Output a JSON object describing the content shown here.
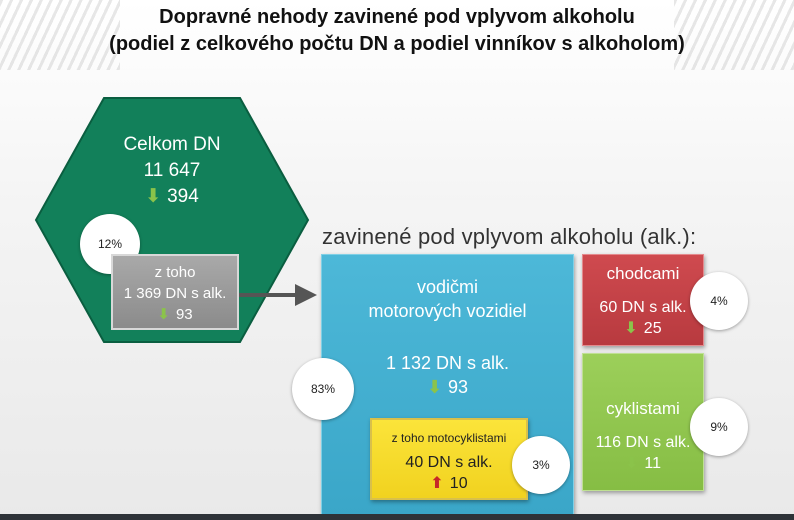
{
  "title": {
    "line1": "Dopravné nehody zavinené pod vplyvom alkoholu",
    "line2": "(podiel z celkového počtu DN a podiel vinníkov s alkoholom)"
  },
  "total": {
    "label": "Celkom DN",
    "value": "11 647",
    "change": "394",
    "change_direction": "down"
  },
  "alcohol_subset": {
    "label": "z toho",
    "value": "1 369 DN s alk.",
    "change": "93",
    "change_direction": "down",
    "share": "12%"
  },
  "subtitle": "zavinené pod vplyvom alkoholu (alk.):",
  "drivers": {
    "label_line1": "vodičmi",
    "label_line2": "motorových vozidiel",
    "value": "1 132 DN s alk.",
    "change": "93",
    "change_direction": "down",
    "share": "83%"
  },
  "motorcyclists": {
    "label": "z toho motocyklistami",
    "value": "40 DN s alk.",
    "change": "10",
    "change_direction": "up",
    "share": "3%"
  },
  "pedestrians": {
    "label": "chodcami",
    "value": "60 DN s alk.",
    "change": "25",
    "change_direction": "down",
    "share": "4%"
  },
  "cyclists": {
    "label": "cyklistami",
    "value": "116 DN s alk.",
    "change": "11",
    "change_direction": "down",
    "share": "9%"
  },
  "colors": {
    "hexagon": "#12805a",
    "subset_box": "#9a9a9a",
    "drivers_box": "#43afd0",
    "pedestrians_box": "#c44247",
    "cyclists_box": "#92c650",
    "motorcyclists_box": "#f6dc2b",
    "arrow_down": "#8bc34a",
    "arrow_up": "#c62828"
  },
  "icons": {
    "change_down": "down-arrow-icon",
    "change_up": "up-arrow-icon",
    "connector": "right-arrow-icon"
  }
}
